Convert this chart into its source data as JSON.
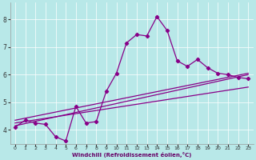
{
  "title": "",
  "xlabel": "Windchill (Refroidissement éolien,°C)",
  "ylabel": "",
  "bg_color": "#b8e8e8",
  "line_color": "#880088",
  "xlim": [
    -0.5,
    23.5
  ],
  "ylim": [
    3.5,
    8.6
  ],
  "xticks": [
    0,
    1,
    2,
    3,
    4,
    5,
    6,
    7,
    8,
    9,
    10,
    11,
    12,
    13,
    14,
    15,
    16,
    17,
    18,
    19,
    20,
    21,
    22,
    23
  ],
  "yticks": [
    4,
    5,
    6,
    7,
    8
  ],
  "main_x": [
    0,
    1,
    2,
    3,
    4,
    5,
    6,
    7,
    8,
    9,
    10,
    11,
    12,
    13,
    14,
    15,
    16,
    17,
    18,
    19,
    20,
    21,
    22,
    23
  ],
  "main_y": [
    4.1,
    4.35,
    4.25,
    4.2,
    3.75,
    3.6,
    4.85,
    4.25,
    4.3,
    5.4,
    6.05,
    7.15,
    7.45,
    7.4,
    8.1,
    7.6,
    6.5,
    6.3,
    6.55,
    6.25,
    6.05,
    6.0,
    5.9,
    5.85
  ],
  "line1_x": [
    0,
    23
  ],
  "line1_y": [
    4.15,
    6.0
  ],
  "line2_x": [
    0,
    23
  ],
  "line2_y": [
    4.35,
    6.05
  ],
  "line3_x": [
    0,
    23
  ],
  "line3_y": [
    4.25,
    5.55
  ],
  "grid_color": "#ffffff",
  "xlabel_color": "#660066"
}
